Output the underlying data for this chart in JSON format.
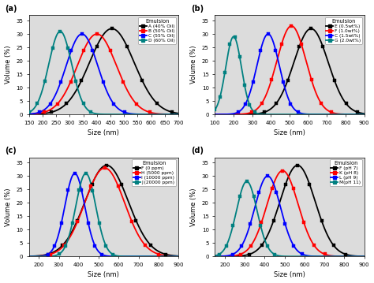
{
  "panel_a": {
    "label": "(a)",
    "legend_title": "Emulsion",
    "series": [
      {
        "name": "A (40% Oil)",
        "color": "black",
        "peak": 455,
        "std": 82,
        "peak_val": 32
      },
      {
        "name": "B (50% Oil)",
        "color": "red",
        "peak": 400,
        "std": 72,
        "peak_val": 30
      },
      {
        "name": "C (55% Oil)",
        "color": "blue",
        "peak": 345,
        "std": 58,
        "peak_val": 30
      },
      {
        "name": "D (60% Oil)",
        "color": "#008080",
        "peak": 265,
        "std": 42,
        "peak_val": 31
      }
    ],
    "xlim": [
      150,
      700
    ],
    "xticks": [
      150,
      200,
      250,
      300,
      350,
      400,
      450,
      500,
      550,
      600,
      650,
      700
    ],
    "ylim": [
      0,
      37
    ],
    "yticks": [
      0,
      5,
      10,
      15,
      20,
      25,
      30,
      35
    ],
    "xlabel": "Size (nm)",
    "ylabel": "Volume (%)"
  },
  "panel_b": {
    "label": "(b)",
    "legend_title": "Emulsion",
    "series": [
      {
        "name": "E (0.5wt%)",
        "color": "black",
        "peak": 615,
        "std": 92,
        "peak_val": 32
      },
      {
        "name": "F (1.0wt%)",
        "color": "red",
        "peak": 510,
        "std": 78,
        "peak_val": 33
      },
      {
        "name": "C (1.5wt%)",
        "color": "blue",
        "peak": 385,
        "std": 60,
        "peak_val": 30
      },
      {
        "name": "G (2.0wt%)",
        "color": "#008080",
        "peak": 200,
        "std": 42,
        "peak_val": 29
      }
    ],
    "xlim": [
      100,
      900
    ],
    "xticks": [
      100,
      200,
      300,
      400,
      500,
      600,
      700,
      800,
      900
    ],
    "ylim": [
      0,
      37
    ],
    "yticks": [
      0,
      5,
      10,
      15,
      20,
      25,
      30,
      35
    ],
    "xlabel": "Size (nm)",
    "ylabel": "Volume (%)"
  },
  "panel_c": {
    "label": "(c)",
    "legend_title": "Emulsion",
    "series": [
      {
        "name": "F (0 ppm)",
        "color": "black",
        "peak": 540,
        "std": 108,
        "peak_val": 34
      },
      {
        "name": "H (5000 ppm)",
        "color": "red",
        "peak": 530,
        "std": 100,
        "peak_val": 33
      },
      {
        "name": "I (10000 ppm)",
        "color": "blue",
        "peak": 380,
        "std": 50,
        "peak_val": 31
      },
      {
        "name": "J (20000 ppm)",
        "color": "#008080",
        "peak": 435,
        "std": 50,
        "peak_val": 31
      }
    ],
    "xlim": [
      150,
      900
    ],
    "xticks": [
      200,
      300,
      400,
      500,
      600,
      700,
      800,
      900
    ],
    "ylim": [
      0,
      37
    ],
    "yticks": [
      0,
      5,
      10,
      15,
      20,
      25,
      30,
      35
    ],
    "xlabel": "Size (nm)",
    "ylabel": "Volume (%)"
  },
  "panel_d": {
    "label": "(d)",
    "legend_title": "Emulsion",
    "series": [
      {
        "name": "F (pH 7)",
        "color": "black",
        "peak": 565,
        "std": 88,
        "peak_val": 34
      },
      {
        "name": "K (pH 8)",
        "color": "red",
        "peak": 490,
        "std": 78,
        "peak_val": 32
      },
      {
        "name": "L (pH 9)",
        "color": "blue",
        "peak": 415,
        "std": 65,
        "peak_val": 30
      },
      {
        "name": "M(pH 11)",
        "color": "#008080",
        "peak": 310,
        "std": 52,
        "peak_val": 28
      }
    ],
    "xlim": [
      150,
      900
    ],
    "xticks": [
      200,
      300,
      400,
      500,
      600,
      700,
      800,
      900
    ],
    "ylim": [
      0,
      37
    ],
    "yticks": [
      0,
      5,
      10,
      15,
      20,
      25,
      30,
      35
    ],
    "xlabel": "Size (nm)",
    "ylabel": "Volume (%)"
  },
  "bg_color": "#dcdcdc",
  "marker": "s",
  "markersize": 3.5,
  "linewidth": 1.3
}
